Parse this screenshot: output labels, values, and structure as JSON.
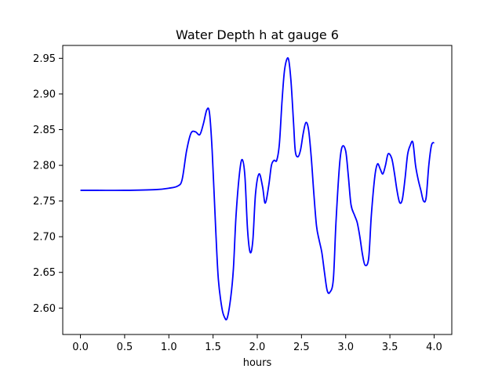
{
  "chart_data": {
    "type": "line",
    "title": "Water Depth h at gauge 6",
    "xlabel": "hours",
    "ylabel": "",
    "xlim": [
      -0.2,
      4.2
    ],
    "ylim": [
      2.563,
      2.968
    ],
    "xticks": [
      0.0,
      0.5,
      1.0,
      1.5,
      2.0,
      2.5,
      3.0,
      3.5,
      4.0
    ],
    "xtick_labels": [
      "0.0",
      "0.5",
      "1.0",
      "1.5",
      "2.0",
      "2.5",
      "3.0",
      "3.5",
      "4.0"
    ],
    "yticks": [
      2.6,
      2.65,
      2.7,
      2.75,
      2.8,
      2.85,
      2.9,
      2.95
    ],
    "ytick_labels": [
      "2.60",
      "2.65",
      "2.70",
      "2.75",
      "2.80",
      "2.85",
      "2.90",
      "2.95"
    ],
    "grid": false,
    "series": [
      {
        "color": "#0000ff",
        "x": [
          0.0,
          0.2,
          0.5,
          0.85,
          1.0,
          1.1,
          1.15,
          1.2,
          1.25,
          1.3,
          1.35,
          1.39,
          1.43,
          1.46,
          1.49,
          1.53,
          1.56,
          1.6,
          1.63,
          1.66,
          1.7,
          1.73,
          1.76,
          1.8,
          1.83,
          1.86,
          1.89,
          1.92,
          1.95,
          1.98,
          2.02,
          2.06,
          2.09,
          2.13,
          2.16,
          2.19,
          2.22,
          2.25,
          2.28,
          2.31,
          2.35,
          2.38,
          2.41,
          2.43,
          2.46,
          2.49,
          2.52,
          2.55,
          2.58,
          2.61,
          2.64,
          2.67,
          2.7,
          2.73,
          2.76,
          2.79,
          2.82,
          2.86,
          2.89,
          2.93,
          2.96,
          3.0,
          3.03,
          3.06,
          3.1,
          3.13,
          3.16,
          3.19,
          3.22,
          3.26,
          3.29,
          3.33,
          3.36,
          3.39,
          3.42,
          3.45,
          3.48,
          3.52,
          3.55,
          3.58,
          3.61,
          3.64,
          3.67,
          3.7,
          3.73,
          3.76,
          3.79,
          3.82,
          3.85,
          3.88,
          3.91,
          3.94,
          3.97,
          4.0
        ],
        "y": [
          2.765,
          2.765,
          2.765,
          2.766,
          2.768,
          2.771,
          2.78,
          2.82,
          2.845,
          2.847,
          2.843,
          2.858,
          2.878,
          2.873,
          2.82,
          2.71,
          2.64,
          2.6,
          2.587,
          2.586,
          2.615,
          2.655,
          2.73,
          2.79,
          2.808,
          2.785,
          2.71,
          2.678,
          2.695,
          2.76,
          2.788,
          2.77,
          2.747,
          2.772,
          2.8,
          2.807,
          2.807,
          2.83,
          2.89,
          2.935,
          2.95,
          2.92,
          2.86,
          2.82,
          2.812,
          2.822,
          2.845,
          2.86,
          2.85,
          2.812,
          2.76,
          2.715,
          2.695,
          2.678,
          2.65,
          2.625,
          2.622,
          2.64,
          2.72,
          2.8,
          2.826,
          2.82,
          2.785,
          2.745,
          2.73,
          2.72,
          2.7,
          2.675,
          2.66,
          2.67,
          2.73,
          2.785,
          2.802,
          2.795,
          2.788,
          2.8,
          2.816,
          2.81,
          2.79,
          2.765,
          2.748,
          2.752,
          2.78,
          2.815,
          2.828,
          2.832,
          2.8,
          2.78,
          2.765,
          2.75,
          2.755,
          2.8,
          2.828,
          2.832
        ]
      }
    ]
  }
}
